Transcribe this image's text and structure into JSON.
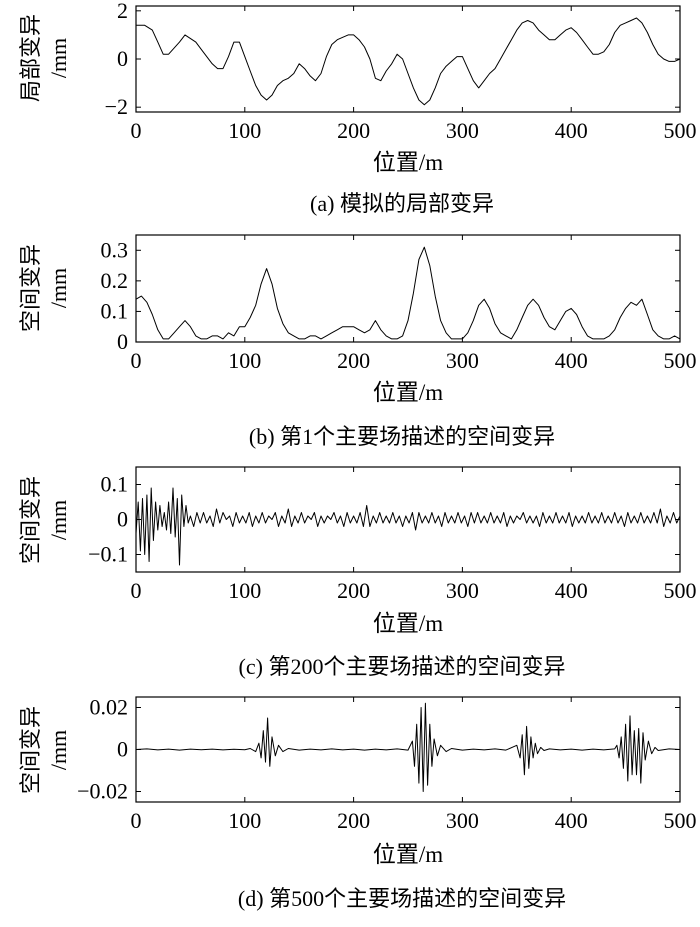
{
  "chart_data": [
    {
      "type": "line",
      "caption": "(a) 模拟的局部变异",
      "ylabel_lines": [
        "局部变异",
        "/mm"
      ],
      "xlabel": "位置/m",
      "xlim": [
        0,
        500
      ],
      "ylim": [
        -2.2,
        2.2
      ],
      "xticks": [
        0,
        100,
        200,
        300,
        400,
        500
      ],
      "yticks": [
        -2,
        0,
        2
      ],
      "ytick_labels": [
        "−2",
        "0",
        "2"
      ],
      "x": [
        0,
        8,
        15,
        20,
        25,
        30,
        40,
        45,
        55,
        60,
        70,
        75,
        80,
        85,
        90,
        95,
        100,
        105,
        110,
        115,
        120,
        125,
        130,
        135,
        140,
        145,
        150,
        155,
        160,
        165,
        170,
        175,
        180,
        185,
        190,
        195,
        200,
        205,
        210,
        215,
        220,
        225,
        230,
        235,
        240,
        245,
        250,
        255,
        260,
        265,
        270,
        275,
        280,
        285,
        290,
        295,
        300,
        305,
        310,
        315,
        320,
        325,
        330,
        335,
        340,
        345,
        350,
        355,
        360,
        365,
        370,
        375,
        380,
        385,
        390,
        395,
        400,
        405,
        410,
        415,
        420,
        425,
        430,
        435,
        440,
        445,
        450,
        455,
        460,
        465,
        470,
        475,
        480,
        485,
        490,
        495,
        500
      ],
      "y": [
        1.4,
        1.4,
        1.2,
        0.7,
        0.2,
        0.2,
        0.7,
        1.0,
        0.7,
        0.4,
        -0.2,
        -0.4,
        -0.4,
        0.1,
        0.7,
        0.7,
        0.1,
        -0.5,
        -1.1,
        -1.5,
        -1.7,
        -1.5,
        -1.1,
        -0.9,
        -0.8,
        -0.6,
        -0.2,
        -0.4,
        -0.7,
        -0.9,
        -0.6,
        0.1,
        0.6,
        0.8,
        0.9,
        1.0,
        1.0,
        0.8,
        0.5,
        0.0,
        -0.8,
        -0.9,
        -0.5,
        -0.2,
        0.2,
        0.0,
        -0.6,
        -1.2,
        -1.7,
        -1.9,
        -1.7,
        -1.2,
        -0.6,
        -0.3,
        -0.1,
        0.1,
        0.1,
        -0.4,
        -0.9,
        -1.2,
        -0.9,
        -0.6,
        -0.4,
        0.0,
        0.4,
        0.8,
        1.2,
        1.5,
        1.6,
        1.5,
        1.2,
        1.0,
        0.8,
        0.8,
        1.0,
        1.2,
        1.3,
        1.1,
        0.8,
        0.5,
        0.2,
        0.2,
        0.3,
        0.6,
        1.1,
        1.4,
        1.5,
        1.6,
        1.7,
        1.5,
        1.1,
        0.6,
        0.2,
        0.0,
        -0.1,
        -0.1,
        0.0
      ]
    },
    {
      "type": "line",
      "caption": "(b) 第1个主要场描述的空间变异",
      "ylabel_lines": [
        "空间变异",
        "/mm"
      ],
      "xlabel": "位置/m",
      "xlim": [
        0,
        500
      ],
      "ylim": [
        0,
        0.35
      ],
      "xticks": [
        0,
        100,
        200,
        300,
        400,
        500
      ],
      "yticks": [
        0,
        0.1,
        0.2,
        0.3
      ],
      "ytick_labels": [
        "0",
        "0.1",
        "0.2",
        "0.3"
      ],
      "x": [
        0,
        5,
        10,
        15,
        20,
        25,
        30,
        35,
        40,
        45,
        50,
        55,
        60,
        65,
        70,
        75,
        80,
        85,
        90,
        95,
        100,
        105,
        110,
        115,
        120,
        125,
        130,
        135,
        140,
        145,
        150,
        155,
        160,
        165,
        170,
        175,
        180,
        185,
        190,
        195,
        200,
        205,
        210,
        215,
        220,
        225,
        230,
        235,
        240,
        245,
        250,
        255,
        260,
        265,
        270,
        275,
        280,
        285,
        290,
        295,
        300,
        305,
        310,
        315,
        320,
        325,
        330,
        335,
        340,
        345,
        350,
        355,
        360,
        365,
        370,
        375,
        380,
        385,
        390,
        395,
        400,
        405,
        410,
        415,
        420,
        425,
        430,
        435,
        440,
        445,
        450,
        455,
        460,
        465,
        470,
        475,
        480,
        485,
        490,
        495,
        500
      ],
      "y": [
        0.14,
        0.15,
        0.13,
        0.09,
        0.04,
        0.01,
        0.01,
        0.03,
        0.05,
        0.07,
        0.05,
        0.02,
        0.01,
        0.01,
        0.02,
        0.02,
        0.01,
        0.03,
        0.02,
        0.05,
        0.05,
        0.08,
        0.12,
        0.19,
        0.24,
        0.19,
        0.11,
        0.06,
        0.03,
        0.02,
        0.01,
        0.01,
        0.02,
        0.02,
        0.01,
        0.02,
        0.03,
        0.04,
        0.05,
        0.05,
        0.05,
        0.04,
        0.03,
        0.04,
        0.07,
        0.04,
        0.02,
        0.01,
        0.01,
        0.02,
        0.07,
        0.16,
        0.27,
        0.31,
        0.25,
        0.15,
        0.07,
        0.03,
        0.01,
        0.01,
        0.01,
        0.03,
        0.07,
        0.12,
        0.14,
        0.11,
        0.06,
        0.03,
        0.02,
        0.01,
        0.04,
        0.08,
        0.12,
        0.14,
        0.12,
        0.08,
        0.05,
        0.04,
        0.07,
        0.1,
        0.11,
        0.09,
        0.05,
        0.02,
        0.01,
        0.01,
        0.01,
        0.02,
        0.04,
        0.08,
        0.11,
        0.13,
        0.12,
        0.14,
        0.09,
        0.04,
        0.02,
        0.01,
        0.01,
        0.02,
        0.01
      ]
    },
    {
      "type": "line",
      "caption": "(c) 第200个主要场描述的空间变异",
      "ylabel_lines": [
        "空间变异",
        "/mm"
      ],
      "xlabel": "位置/m",
      "xlim": [
        0,
        500
      ],
      "ylim": [
        -0.15,
        0.15
      ],
      "xticks": [
        0,
        100,
        200,
        300,
        400,
        500
      ],
      "yticks": [
        -0.1,
        0,
        0.1
      ],
      "ytick_labels": [
        "−0.1",
        "0",
        "0.1"
      ],
      "x": [
        0,
        2,
        4,
        6,
        8,
        10,
        12,
        14,
        16,
        18,
        20,
        22,
        24,
        26,
        28,
        30,
        32,
        34,
        36,
        38,
        40,
        42,
        44,
        46,
        48,
        50,
        53,
        56,
        59,
        62,
        65,
        68,
        71,
        74,
        77,
        80,
        83,
        86,
        89,
        92,
        95,
        98,
        101,
        104,
        107,
        110,
        113,
        116,
        119,
        122,
        125,
        128,
        131,
        134,
        137,
        140,
        143,
        146,
        149,
        152,
        155,
        158,
        161,
        164,
        167,
        170,
        173,
        176,
        179,
        182,
        185,
        188,
        191,
        194,
        197,
        200,
        203,
        206,
        209,
        212,
        215,
        218,
        221,
        224,
        227,
        230,
        233,
        236,
        239,
        242,
        245,
        248,
        251,
        254,
        257,
        260,
        263,
        266,
        269,
        272,
        275,
        278,
        281,
        284,
        287,
        290,
        293,
        296,
        299,
        302,
        305,
        308,
        311,
        314,
        317,
        320,
        323,
        326,
        329,
        332,
        335,
        338,
        341,
        344,
        347,
        350,
        353,
        356,
        359,
        362,
        365,
        368,
        371,
        374,
        377,
        380,
        383,
        386,
        389,
        392,
        395,
        398,
        401,
        404,
        407,
        410,
        413,
        416,
        419,
        422,
        425,
        428,
        431,
        434,
        437,
        440,
        443,
        446,
        449,
        452,
        455,
        458,
        461,
        464,
        467,
        470,
        473,
        476,
        479,
        482,
        485,
        488,
        491,
        494,
        497,
        500
      ],
      "y": [
        -0.04,
        0.05,
        -0.09,
        0.06,
        -0.1,
        0.07,
        -0.12,
        0.09,
        -0.06,
        0.05,
        -0.03,
        0.04,
        -0.02,
        0.02,
        -0.03,
        0.05,
        -0.04,
        0.09,
        -0.05,
        0.06,
        -0.13,
        0.07,
        -0.02,
        0.04,
        -0.01,
        0.01,
        -0.02,
        0.02,
        -0.01,
        0.02,
        -0.01,
        0.01,
        -0.02,
        0.03,
        -0.01,
        0.02,
        0.0,
        0.01,
        -0.02,
        0.02,
        -0.01,
        0.01,
        -0.01,
        0.02,
        -0.02,
        0.01,
        -0.01,
        0.02,
        -0.01,
        0.01,
        0.0,
        0.02,
        -0.02,
        0.01,
        -0.01,
        0.03,
        -0.02,
        0.01,
        -0.01,
        0.02,
        -0.01,
        0.01,
        0.0,
        0.02,
        -0.02,
        0.01,
        -0.01,
        0.01,
        0.0,
        0.02,
        -0.01,
        0.01,
        -0.02,
        0.02,
        -0.01,
        0.01,
        -0.01,
        0.02,
        -0.02,
        0.04,
        -0.02,
        0.01,
        -0.01,
        0.02,
        -0.01,
        0.01,
        -0.01,
        0.02,
        -0.01,
        0.01,
        -0.02,
        0.01,
        -0.01,
        0.02,
        -0.03,
        0.02,
        -0.01,
        0.01,
        -0.01,
        0.02,
        -0.01,
        0.01,
        -0.02,
        0.02,
        -0.01,
        0.01,
        -0.01,
        0.02,
        -0.01,
        0.01,
        -0.02,
        0.02,
        -0.01,
        0.02,
        -0.01,
        0.01,
        -0.01,
        0.02,
        -0.01,
        0.01,
        -0.01,
        0.02,
        -0.02,
        0.01,
        -0.01,
        0.01,
        0.0,
        0.02,
        -0.01,
        0.01,
        -0.01,
        0.01,
        -0.02,
        0.02,
        -0.01,
        0.01,
        -0.01,
        0.02,
        -0.01,
        0.01,
        -0.01,
        0.02,
        -0.02,
        0.01,
        -0.01,
        0.01,
        -0.01,
        0.02,
        -0.01,
        0.01,
        -0.01,
        0.02,
        -0.01,
        0.01,
        -0.01,
        0.02,
        -0.01,
        0.01,
        -0.02,
        0.02,
        -0.01,
        0.01,
        -0.01,
        0.02,
        -0.01,
        0.01,
        -0.01,
        0.02,
        -0.01,
        0.03,
        -0.02,
        0.01,
        -0.01,
        0.02,
        -0.01,
        0.01
      ]
    },
    {
      "type": "line",
      "caption": "(d) 第500个主要场描述的空间变异",
      "ylabel_lines": [
        "空间变异",
        "/mm"
      ],
      "xlabel": "位置/m",
      "xlim": [
        0,
        500
      ],
      "ylim": [
        -0.025,
        0.025
      ],
      "xticks": [
        0,
        100,
        200,
        300,
        400,
        500
      ],
      "yticks": [
        -0.02,
        0,
        0.02
      ],
      "ytick_labels": [
        "−0.02",
        "0",
        "0.02"
      ],
      "x": [
        0,
        10,
        20,
        30,
        40,
        50,
        60,
        70,
        80,
        90,
        100,
        105,
        110,
        113,
        115,
        117,
        119,
        121,
        123,
        125,
        128,
        131,
        135,
        140,
        150,
        160,
        170,
        180,
        190,
        200,
        210,
        220,
        230,
        240,
        250,
        254,
        256,
        258,
        260,
        262,
        264,
        266,
        268,
        270,
        272,
        274,
        277,
        280,
        285,
        290,
        300,
        310,
        320,
        330,
        340,
        350,
        353,
        355,
        357,
        359,
        361,
        363,
        365,
        367,
        369,
        372,
        375,
        380,
        390,
        400,
        410,
        420,
        430,
        440,
        442,
        444,
        446,
        448,
        450,
        452,
        454,
        456,
        458,
        460,
        462,
        464,
        466,
        468,
        471,
        474,
        477,
        480,
        490,
        500
      ],
      "y": [
        0.0,
        0.0003,
        -0.0002,
        0.0002,
        -0.0003,
        0.0002,
        -0.0001,
        0.0002,
        -0.0002,
        0.0001,
        -0.0001,
        0.0005,
        -0.001,
        0.003,
        -0.004,
        0.009,
        -0.006,
        0.015,
        -0.008,
        0.006,
        -0.003,
        0.002,
        -0.001,
        0.0005,
        -0.0003,
        0.0002,
        -0.0002,
        0.0003,
        -0.0002,
        0.0002,
        -0.0003,
        0.0002,
        -0.0002,
        0.0003,
        -0.0003,
        0.004,
        -0.008,
        0.012,
        -0.016,
        0.02,
        -0.02,
        0.022,
        -0.017,
        0.012,
        -0.008,
        0.005,
        -0.003,
        0.002,
        -0.001,
        0.0005,
        -0.0003,
        0.0002,
        -0.0002,
        0.0003,
        -0.0003,
        0.002,
        -0.004,
        0.007,
        -0.012,
        0.011,
        -0.009,
        0.006,
        -0.004,
        0.003,
        -0.002,
        0.001,
        -0.0005,
        0.0003,
        -0.0002,
        0.0002,
        -0.0003,
        0.0002,
        -0.0002,
        0.0003,
        0.002,
        -0.004,
        0.006,
        -0.009,
        0.012,
        -0.015,
        0.016,
        -0.012,
        0.009,
        -0.012,
        0.01,
        -0.016,
        0.008,
        -0.005,
        0.004,
        -0.002,
        0.001,
        -0.0005,
        0.0003,
        0.0
      ]
    }
  ]
}
